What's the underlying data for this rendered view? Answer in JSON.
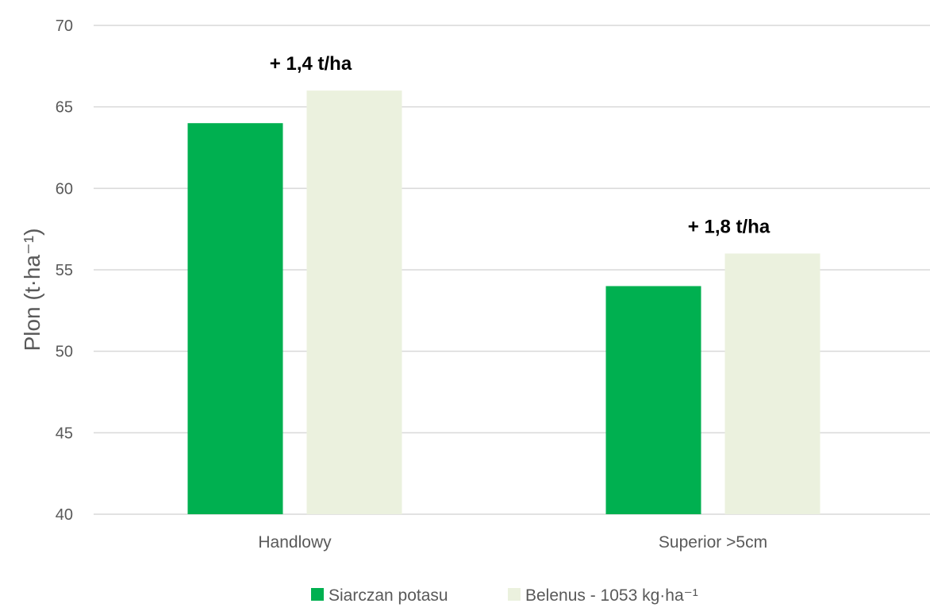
{
  "chart_data": {
    "type": "bar",
    "categories": [
      "Handlowy",
      "Superior >5cm"
    ],
    "series": [
      {
        "name": "Siarczan potasu",
        "values": [
          64,
          54
        ],
        "color": "#00b050"
      },
      {
        "name": "Belenus - 1053 kg·ha⁻¹",
        "values": [
          66,
          56
        ],
        "color": "#ebf1de"
      }
    ],
    "annotations": [
      "+ 1,4 t/ha",
      "+ 1,8 t/ha"
    ],
    "ylabel": "Plon (t·ha⁻¹)",
    "xlabel": "",
    "ylim": [
      40,
      70
    ],
    "yticks": [
      40,
      45,
      50,
      55,
      60,
      65,
      70
    ],
    "grid": true,
    "legend_position": "bottom"
  }
}
